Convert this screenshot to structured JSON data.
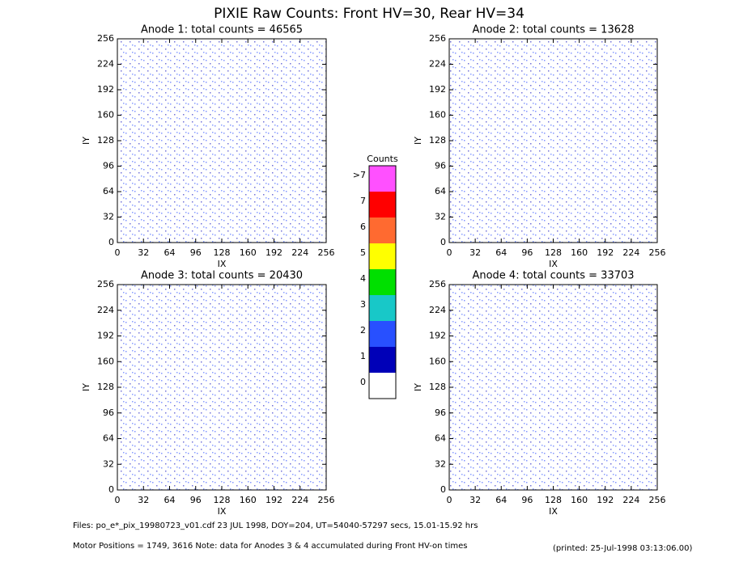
{
  "header": {
    "title": "PIXIE Raw Counts:  Front HV=30, Rear HV=34"
  },
  "chart_data": [
    {
      "type": "heatmap",
      "title": "Anode 1: total counts = 46565",
      "xlabel": "IX",
      "ylabel": "IY",
      "xlim": [
        0,
        256
      ],
      "ylim": [
        0,
        256
      ],
      "xticks": [
        0,
        32,
        64,
        96,
        128,
        160,
        192,
        224,
        256
      ],
      "yticks": [
        0,
        32,
        64,
        96,
        128,
        160,
        192,
        224,
        256
      ]
    },
    {
      "type": "heatmap",
      "title": "Anode 2: total counts = 13628",
      "xlabel": "IX",
      "ylabel": "IY",
      "xlim": [
        0,
        256
      ],
      "ylim": [
        0,
        256
      ],
      "xticks": [
        0,
        32,
        64,
        96,
        128,
        160,
        192,
        224,
        256
      ],
      "yticks": [
        0,
        32,
        64,
        96,
        128,
        160,
        192,
        224,
        256
      ]
    },
    {
      "type": "heatmap",
      "title": "Anode 3: total counts = 20430",
      "xlabel": "IX",
      "ylabel": "IY",
      "xlim": [
        0,
        256
      ],
      "ylim": [
        0,
        256
      ],
      "xticks": [
        0,
        32,
        64,
        96,
        128,
        160,
        192,
        224,
        256
      ],
      "yticks": [
        0,
        32,
        64,
        96,
        128,
        160,
        192,
        224,
        256
      ]
    },
    {
      "type": "heatmap",
      "title": "Anode 4: total counts = 33703",
      "xlabel": "IX",
      "ylabel": "IY",
      "xlim": [
        0,
        256
      ],
      "ylim": [
        0,
        256
      ],
      "xticks": [
        0,
        32,
        64,
        96,
        128,
        160,
        192,
        224,
        256
      ],
      "yticks": [
        0,
        32,
        64,
        96,
        128,
        160,
        192,
        224,
        256
      ]
    }
  ],
  "colorbar": {
    "title": "Counts",
    "labels": [
      "0",
      "1",
      "2",
      "3",
      "4",
      "5",
      "6",
      "7",
      ">7"
    ],
    "colors": [
      "#ffffff",
      "#0000b8",
      "#2850ff",
      "#18c8c8",
      "#00e000",
      "#ffff00",
      "#ff6a30",
      "#ff0000",
      "#ff50ff"
    ]
  },
  "footer": {
    "files": "Files: po_e*_pix_19980723_v01.cdf    23 JUL 1998, DOY=204, UT=54040-57297 secs, 15.01-15.92 hrs",
    "motor": "Motor Positions = 1749, 3616   Note: data for Anodes 3 & 4 accumulated during Front HV-on times",
    "printed": "(printed: 25-Jul-1998 03:13:06.00)"
  }
}
